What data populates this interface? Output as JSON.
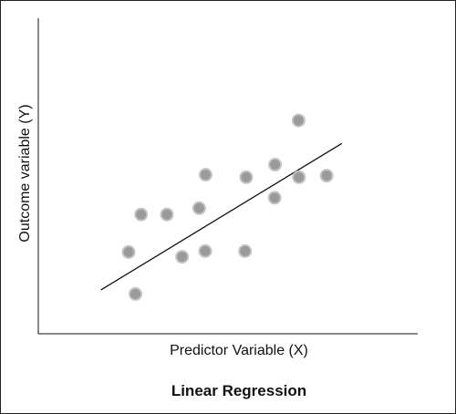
{
  "chart_data": {
    "type": "scatter",
    "title": "Linear Regression",
    "xlabel": "Predictor Variable (X)",
    "ylabel": "Outcome variable (Y)",
    "xlim": [
      0,
      100
    ],
    "ylim": [
      0,
      100
    ],
    "grid": false,
    "points": [
      {
        "x": 23.8,
        "y": 25.9
      },
      {
        "x": 25.6,
        "y": 12.6
      },
      {
        "x": 27.1,
        "y": 37.8
      },
      {
        "x": 33.9,
        "y": 37.8
      },
      {
        "x": 37.9,
        "y": 24.4
      },
      {
        "x": 42.4,
        "y": 39.8
      },
      {
        "x": 44.0,
        "y": 26.2
      },
      {
        "x": 44.1,
        "y": 50.4
      },
      {
        "x": 54.5,
        "y": 26.2
      },
      {
        "x": 54.8,
        "y": 49.6
      },
      {
        "x": 62.3,
        "y": 43.1
      },
      {
        "x": 62.4,
        "y": 53.6
      },
      {
        "x": 68.6,
        "y": 67.6
      },
      {
        "x": 68.7,
        "y": 49.6
      },
      {
        "x": 76.0,
        "y": 50.1
      }
    ],
    "regression_line": {
      "x": [
        16.5,
        80.0
      ],
      "y": [
        13.9,
        60.3
      ]
    },
    "colors": {
      "point_fill": "#9a9a9a",
      "point_stroke": "#c4c4c4",
      "line": "#111111",
      "axis": "#111111"
    }
  }
}
